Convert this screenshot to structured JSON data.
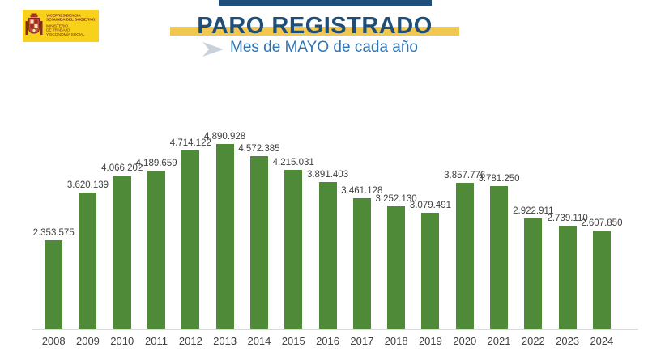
{
  "logo": {
    "org_line1": "VICEPRESIDENCIA",
    "org_line2": "SEGUNDA DEL GOBIERNO",
    "ministry_line1": "MINISTERIO",
    "ministry_line2": "DE TRABAJO",
    "ministry_line3": "Y ECONOMÍA SOCIAL"
  },
  "header": {
    "title": "PARO REGISTRADO",
    "subtitle": "Mes de MAYO de cada año"
  },
  "colors": {
    "accent_bar": "#1f4e79",
    "title_text": "#1f4e79",
    "subtitle_text": "#2e74b5",
    "title_band": "#f1c84f",
    "logo_background": "#f8d21a",
    "logo_text": "#7a2a20",
    "bar": "#4e8a38",
    "value_label": "#3f3f3f",
    "axis_line": "#d9d9d9"
  },
  "chart_data": {
    "type": "bar",
    "title": "PARO REGISTRADO",
    "subtitle": "Mes de MAYO de cada año",
    "categories": [
      "2008",
      "2009",
      "2010",
      "2011",
      "2012",
      "2013",
      "2014",
      "2015",
      "2016",
      "2017",
      "2018",
      "2019",
      "2020",
      "2021",
      "2022",
      "2023",
      "2024"
    ],
    "values": [
      2353575,
      3620139,
      4066202,
      4189659,
      4714122,
      4890928,
      4572385,
      4215031,
      3891403,
      3461128,
      3252130,
      3079491,
      3857776,
      3781250,
      2922911,
      2739110,
      2607850
    ],
    "value_labels": [
      "2.353.575",
      "3.620.139",
      "4.066.202",
      "4.189.659",
      "4.714.122",
      "4.890.928",
      "4.572.385",
      "4.215.031",
      "3.891.403",
      "3.461.128",
      "3.252.130",
      "3.079.491",
      "3.857.776",
      "3.781.250",
      "2.922.911",
      "2.739.110",
      "2.607.850"
    ],
    "xlabel": "",
    "ylabel": "",
    "ylim": [
      0,
      4890928
    ],
    "grid": false,
    "legend": false,
    "data_labels": true
  }
}
